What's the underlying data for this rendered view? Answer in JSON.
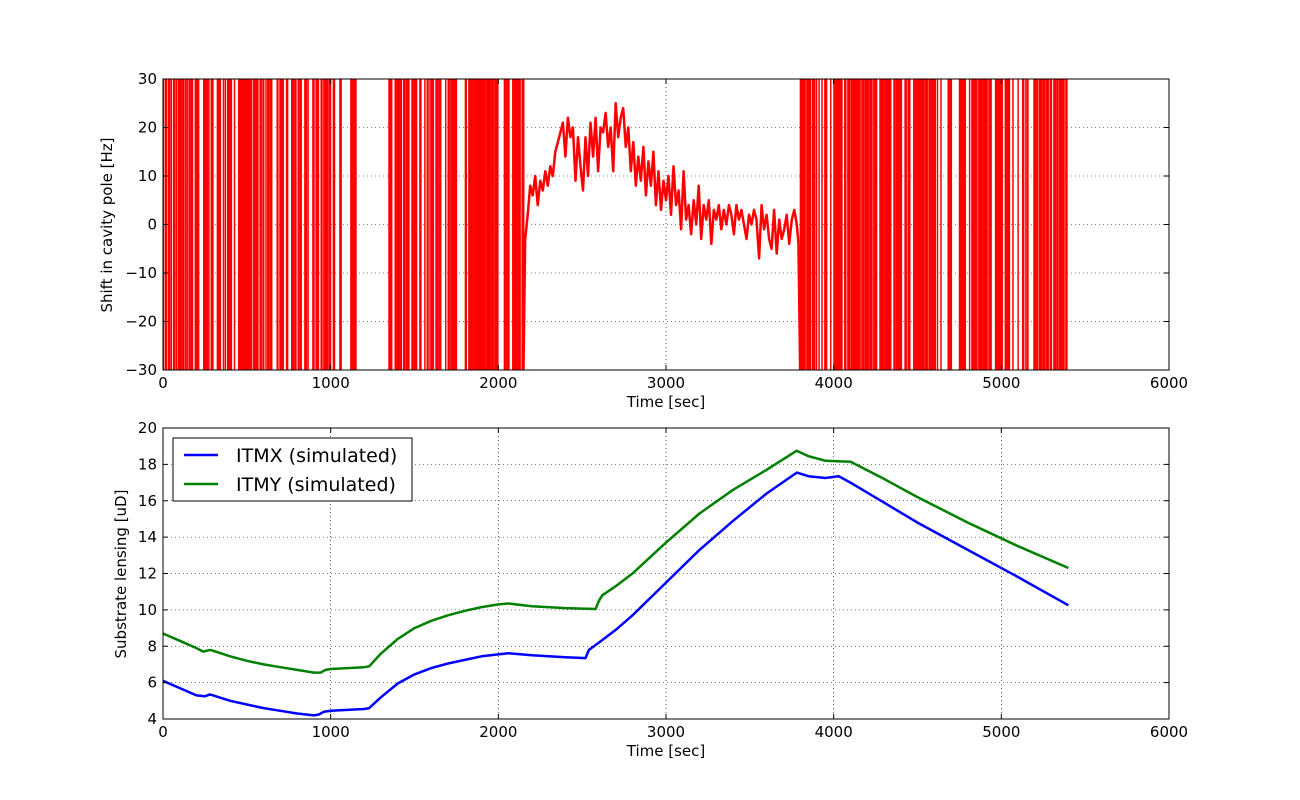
{
  "chart_data": [
    {
      "type": "line",
      "title": "",
      "xlabel": "Time [sec]",
      "ylabel": "Shift in cavity pole [Hz]",
      "xlim": [
        0,
        6000
      ],
      "ylim": [
        -30,
        30
      ],
      "xticks": [
        0,
        1000,
        2000,
        3000,
        4000,
        5000,
        6000
      ],
      "yticks": [
        -30,
        -20,
        -10,
        0,
        10,
        20,
        30
      ],
      "grid": true,
      "legend": "none",
      "series": [
        {
          "color": "#ff0000",
          "x": [
            2160,
            2175,
            2190,
            2205,
            2220,
            2235,
            2250,
            2265,
            2280,
            2295,
            2310,
            2325,
            2340,
            2355,
            2370,
            2385,
            2400,
            2415,
            2430,
            2445,
            2460,
            2475,
            2490,
            2505,
            2520,
            2535,
            2550,
            2565,
            2580,
            2595,
            2610,
            2625,
            2640,
            2655,
            2670,
            2685,
            2700,
            2715,
            2730,
            2745,
            2760,
            2775,
            2790,
            2805,
            2820,
            2835,
            2850,
            2865,
            2880,
            2895,
            2910,
            2925,
            2940,
            2955,
            2970,
            2985,
            3000,
            3015,
            3030,
            3045,
            3060,
            3075,
            3090,
            3105,
            3120,
            3135,
            3150,
            3165,
            3180,
            3195,
            3210,
            3225,
            3240,
            3255,
            3270,
            3285,
            3300,
            3315,
            3330,
            3345,
            3360,
            3375,
            3390,
            3405,
            3420,
            3435,
            3450,
            3465,
            3480,
            3495,
            3510,
            3525,
            3540,
            3555,
            3570,
            3585,
            3600,
            3615,
            3630,
            3645,
            3660,
            3675,
            3690,
            3705,
            3720,
            3735,
            3750,
            3765,
            3780,
            3790
          ],
          "y": [
            -3,
            2,
            8,
            6,
            10,
            4,
            9,
            7,
            11,
            8,
            12,
            10,
            15,
            17,
            19,
            21,
            14,
            22,
            18,
            20,
            9,
            18,
            12,
            7,
            18,
            10,
            21,
            14,
            22,
            11,
            20,
            19,
            23,
            16,
            20,
            11,
            25,
            18,
            22,
            24,
            16,
            20,
            11,
            17,
            8,
            14,
            9,
            16,
            6,
            13,
            8,
            15,
            4,
            11,
            3,
            9,
            5,
            10,
            2,
            12,
            4,
            7,
            -1,
            11,
            1,
            4,
            -2,
            5,
            0,
            8,
            -3,
            4,
            1,
            5,
            -4,
            3,
            1,
            4,
            -1,
            3,
            0,
            4,
            2,
            -2,
            4,
            1,
            3,
            0,
            -3,
            2,
            0,
            3,
            1,
            -7,
            4,
            -1,
            2,
            -3,
            -5,
            3,
            -6,
            1,
            -3,
            -1,
            2,
            -4,
            1,
            3,
            0,
            -4
          ]
        }
      ]
    },
    {
      "type": "line",
      "title": "",
      "xlabel": "Time [sec]",
      "ylabel": "Substrate lensing [uD]",
      "xlim": [
        0,
        6000
      ],
      "ylim": [
        4,
        20
      ],
      "xticks": [
        0,
        1000,
        2000,
        3000,
        4000,
        5000,
        6000
      ],
      "yticks": [
        4,
        6,
        8,
        10,
        12,
        14,
        16,
        18,
        20
      ],
      "grid": true,
      "legend": "top-left",
      "series": [
        {
          "name": "ITMX (simulated)",
          "color": "#0000ff",
          "x": [
            0,
            100,
            200,
            250,
            280,
            300,
            400,
            500,
            600,
            700,
            800,
            900,
            930,
            960,
            1000,
            1100,
            1200,
            1230,
            1300,
            1400,
            1500,
            1600,
            1700,
            1800,
            1900,
            2000,
            2060,
            2200,
            2400,
            2520,
            2540,
            2600,
            2700,
            2800,
            3000,
            3200,
            3400,
            3600,
            3780,
            3850,
            3950,
            4030,
            4100,
            4300,
            4500,
            4800,
            5100,
            5400
          ],
          "y": [
            6.1,
            5.7,
            5.3,
            5.25,
            5.35,
            5.3,
            5.0,
            4.8,
            4.6,
            4.45,
            4.3,
            4.2,
            4.25,
            4.4,
            4.45,
            4.5,
            4.55,
            4.6,
            5.2,
            5.95,
            6.45,
            6.8,
            7.05,
            7.25,
            7.45,
            7.55,
            7.62,
            7.5,
            7.4,
            7.35,
            7.8,
            8.2,
            8.9,
            9.7,
            11.5,
            13.3,
            14.9,
            16.4,
            17.55,
            17.35,
            17.25,
            17.35,
            17.0,
            15.9,
            14.8,
            13.3,
            11.8,
            10.25
          ]
        },
        {
          "name": "ITMY (simulated)",
          "color": "#008000",
          "x": [
            0,
            100,
            200,
            240,
            280,
            300,
            400,
            500,
            600,
            700,
            800,
            900,
            940,
            970,
            1000,
            1100,
            1200,
            1230,
            1300,
            1400,
            1500,
            1600,
            1700,
            1800,
            1900,
            2000,
            2060,
            2200,
            2400,
            2580,
            2600,
            2620,
            2700,
            2800,
            3000,
            3200,
            3400,
            3600,
            3780,
            3850,
            3950,
            4080,
            4100,
            4300,
            4500,
            4800,
            5100,
            5400
          ],
          "y": [
            8.7,
            8.3,
            7.9,
            7.7,
            7.8,
            7.75,
            7.45,
            7.2,
            7.0,
            6.85,
            6.7,
            6.55,
            6.55,
            6.7,
            6.75,
            6.8,
            6.85,
            6.9,
            7.6,
            8.4,
            9.0,
            9.4,
            9.7,
            9.95,
            10.15,
            10.3,
            10.35,
            10.2,
            10.1,
            10.05,
            10.5,
            10.8,
            11.3,
            12.0,
            13.7,
            15.3,
            16.6,
            17.7,
            18.75,
            18.45,
            18.2,
            18.15,
            18.15,
            17.2,
            16.2,
            14.8,
            13.5,
            12.3
          ]
        }
      ]
    }
  ]
}
